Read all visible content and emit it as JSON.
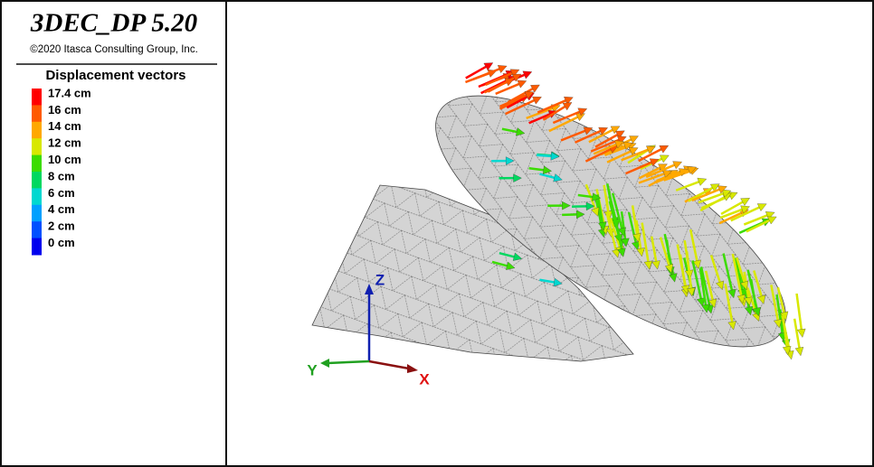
{
  "header": {
    "title": "3DEC_DP 5.20",
    "copyright": "©2020 Itasca Consulting Group, Inc."
  },
  "legend": {
    "title": "Displacement vectors",
    "items": [
      {
        "label": "17.4 cm",
        "color": "#ff0000"
      },
      {
        "label": "16 cm",
        "color": "#ff5a00"
      },
      {
        "label": "14 cm",
        "color": "#ffa800"
      },
      {
        "label": "12 cm",
        "color": "#d8e800"
      },
      {
        "label": "10 cm",
        "color": "#3cdc00"
      },
      {
        "label": "8 cm",
        "color": "#00d860"
      },
      {
        "label": "6 cm",
        "color": "#00d8d0"
      },
      {
        "label": "4 cm",
        "color": "#00a0ff"
      },
      {
        "label": "2 cm",
        "color": "#0050ff"
      },
      {
        "label": "0 cm",
        "color": "#0000ee"
      }
    ]
  },
  "axes": {
    "z": "Z",
    "y": "Y",
    "x": "X"
  }
}
